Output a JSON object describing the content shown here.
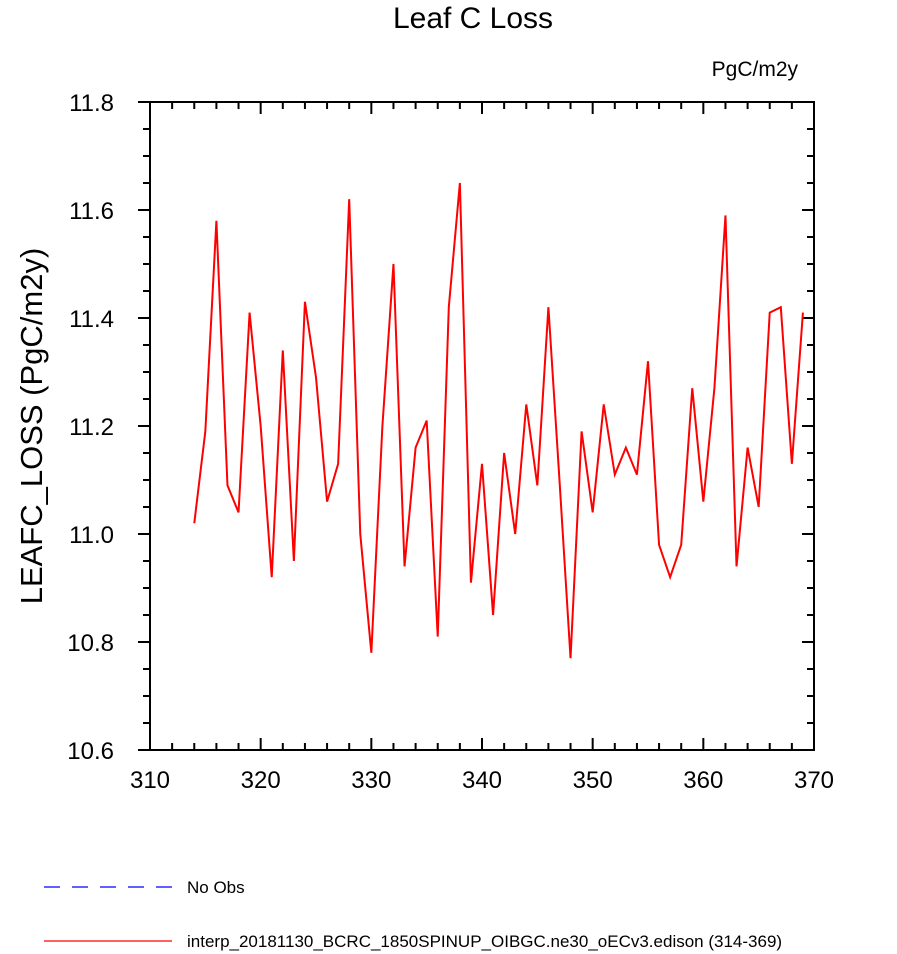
{
  "chart_data": {
    "type": "line",
    "title": "Leaf C Loss",
    "units": "PgC/m2y",
    "ylabel": "LEAFC_LOSS  (PgC/m2y)",
    "xlabel": "",
    "xlim": [
      310,
      370
    ],
    "ylim": [
      10.6,
      11.8
    ],
    "x_ticks": [
      310,
      320,
      330,
      340,
      350,
      360,
      370
    ],
    "y_ticks": [
      10.6,
      10.8,
      11.0,
      11.2,
      11.4,
      11.6,
      11.8
    ],
    "x_tick_labels": [
      "310",
      "320",
      "330",
      "340",
      "350",
      "360",
      "370"
    ],
    "y_tick_labels": [
      "10.6",
      "10.8",
      "11.0",
      "11.2",
      "11.4",
      "11.6",
      "11.8"
    ],
    "grid": false,
    "legend_position": "bottom",
    "series": [
      {
        "name": "No Obs",
        "color": "#0000ff",
        "style": "dashed",
        "x": [],
        "y": []
      },
      {
        "name": "interp_20181130_BCRC_1850SPINUP_OIBGC.ne30_oECv3.edison (314-369)",
        "color": "#ff0000",
        "style": "solid",
        "x": [
          314,
          315,
          316,
          317,
          318,
          319,
          320,
          321,
          322,
          323,
          324,
          325,
          326,
          327,
          328,
          329,
          330,
          331,
          332,
          333,
          334,
          335,
          336,
          337,
          338,
          339,
          340,
          341,
          342,
          343,
          344,
          345,
          346,
          347,
          348,
          349,
          350,
          351,
          352,
          353,
          354,
          355,
          356,
          357,
          358,
          359,
          360,
          361,
          362,
          363,
          364,
          365,
          366,
          367,
          368,
          369
        ],
        "y": [
          11.02,
          11.19,
          11.58,
          11.09,
          11.04,
          11.41,
          11.2,
          10.92,
          11.34,
          10.95,
          11.43,
          11.29,
          11.06,
          11.13,
          11.62,
          11.0,
          10.78,
          11.2,
          11.5,
          10.94,
          11.16,
          11.21,
          10.81,
          11.42,
          11.65,
          10.91,
          11.13,
          10.85,
          11.15,
          11.0,
          11.24,
          11.09,
          11.42,
          11.1,
          10.77,
          11.19,
          11.04,
          11.24,
          11.11,
          11.16,
          11.11,
          11.32,
          10.98,
          10.92,
          10.98,
          11.27,
          11.06,
          11.27,
          11.59,
          10.94,
          11.16,
          11.05,
          11.41,
          11.42,
          11.13,
          11.41
        ]
      }
    ]
  }
}
